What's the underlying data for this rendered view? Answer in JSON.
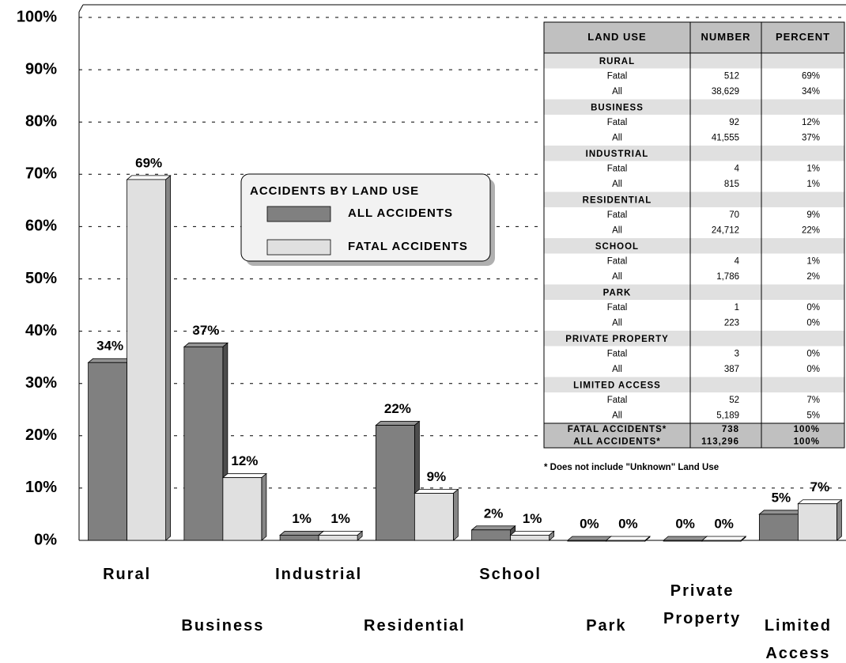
{
  "chart_data": {
    "type": "bar",
    "categories": [
      "Rural",
      "Business",
      "Industrial",
      "Residential",
      "School",
      "Park",
      "Private Property",
      "Limited Access"
    ],
    "series": [
      {
        "name": "ALL ACCIDENTS",
        "color": "#808080",
        "values": [
          34,
          37,
          1,
          22,
          2,
          0,
          0,
          5
        ],
        "value_labels": [
          "34%",
          "37%",
          "1%",
          "22%",
          "2%",
          "0%",
          "0%",
          "5%"
        ]
      },
      {
        "name": "FATAL ACCIDENTS",
        "color": "#e0e0e0",
        "values": [
          69,
          12,
          1,
          9,
          1,
          0,
          0,
          7
        ],
        "value_labels": [
          "69%",
          "12%",
          "1%",
          "9%",
          "1%",
          "0%",
          "0%",
          "7%"
        ]
      }
    ],
    "legend_title": "ACCIDENTS BY LAND USE",
    "ylim": [
      0,
      100
    ],
    "yticks": [
      {
        "value": 0,
        "label": "0%"
      },
      {
        "value": 10,
        "label": "10%"
      },
      {
        "value": 20,
        "label": "20%"
      },
      {
        "value": 30,
        "label": "30%"
      },
      {
        "value": 40,
        "label": "40%"
      },
      {
        "value": 50,
        "label": "50%"
      },
      {
        "value": 60,
        "label": "60%"
      },
      {
        "value": 70,
        "label": "70%"
      },
      {
        "value": 80,
        "label": "80%"
      },
      {
        "value": 90,
        "label": "90%"
      },
      {
        "value": 100,
        "label": "100%"
      }
    ],
    "grid": true
  },
  "table": {
    "columns": [
      "LAND USE",
      "NUMBER",
      "PERCENT"
    ],
    "groups": [
      {
        "name": "RURAL",
        "rows": [
          [
            "Fatal",
            "512",
            "69%"
          ],
          [
            "All",
            "38,629",
            "34%"
          ]
        ]
      },
      {
        "name": "BUSINESS",
        "rows": [
          [
            "Fatal",
            "92",
            "12%"
          ],
          [
            "All",
            "41,555",
            "37%"
          ]
        ]
      },
      {
        "name": "INDUSTRIAL",
        "rows": [
          [
            "Fatal",
            "4",
            "1%"
          ],
          [
            "All",
            "815",
            "1%"
          ]
        ]
      },
      {
        "name": "RESIDENTIAL",
        "rows": [
          [
            "Fatal",
            "70",
            "9%"
          ],
          [
            "All",
            "24,712",
            "22%"
          ]
        ]
      },
      {
        "name": "SCHOOL",
        "rows": [
          [
            "Fatal",
            "4",
            "1%"
          ],
          [
            "All",
            "1,786",
            "2%"
          ]
        ]
      },
      {
        "name": "PARK",
        "rows": [
          [
            "Fatal",
            "1",
            "0%"
          ],
          [
            "All",
            "223",
            "0%"
          ]
        ]
      },
      {
        "name": "PRIVATE PROPERTY",
        "rows": [
          [
            "Fatal",
            "3",
            "0%"
          ],
          [
            "All",
            "387",
            "0%"
          ]
        ]
      },
      {
        "name": "LIMITED ACCESS",
        "rows": [
          [
            "Fatal",
            "52",
            "7%"
          ],
          [
            "All",
            "5,189",
            "5%"
          ]
        ]
      }
    ],
    "totals": [
      [
        "FATAL ACCIDENTS*",
        "738",
        "100%"
      ],
      [
        "ALL ACCIDENTS*",
        "113,296",
        "100%"
      ]
    ],
    "footnote": "* Does not include \"Unknown\" Land Use"
  }
}
